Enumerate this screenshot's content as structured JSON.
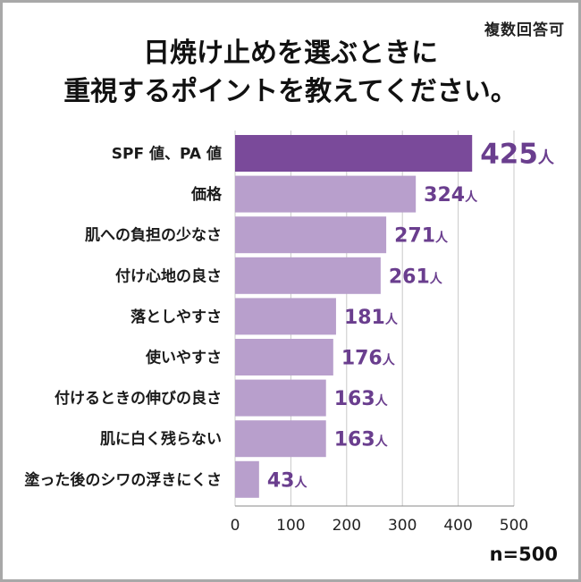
{
  "note": "複数回答可",
  "title_line1": "日焼け止めを選ぶときに",
  "title_line2": "重視するポイントを教えてください。",
  "sample_size": "n=500",
  "chart_data": {
    "type": "bar",
    "orientation": "horizontal",
    "categories": [
      "SPF 値、PA 値",
      "価格",
      "肌への負担の少なさ",
      "付け心地の良さ",
      "落としやすさ",
      "使いやすさ",
      "付けるときの伸びの良さ",
      "肌に白く残らない",
      "塗った後のシワの浮きにくさ"
    ],
    "values": [
      425,
      324,
      271,
      261,
      181,
      176,
      163,
      163,
      43
    ],
    "unit": "人",
    "xlim": [
      0,
      500
    ],
    "xticks": [
      0,
      100,
      200,
      300,
      400,
      500
    ],
    "grid": true,
    "colors": {
      "highlight": "#7a4a9a",
      "bar": "#b89fcc",
      "value_text": "#6a3e8e",
      "grid": "#c9c9c9"
    }
  }
}
